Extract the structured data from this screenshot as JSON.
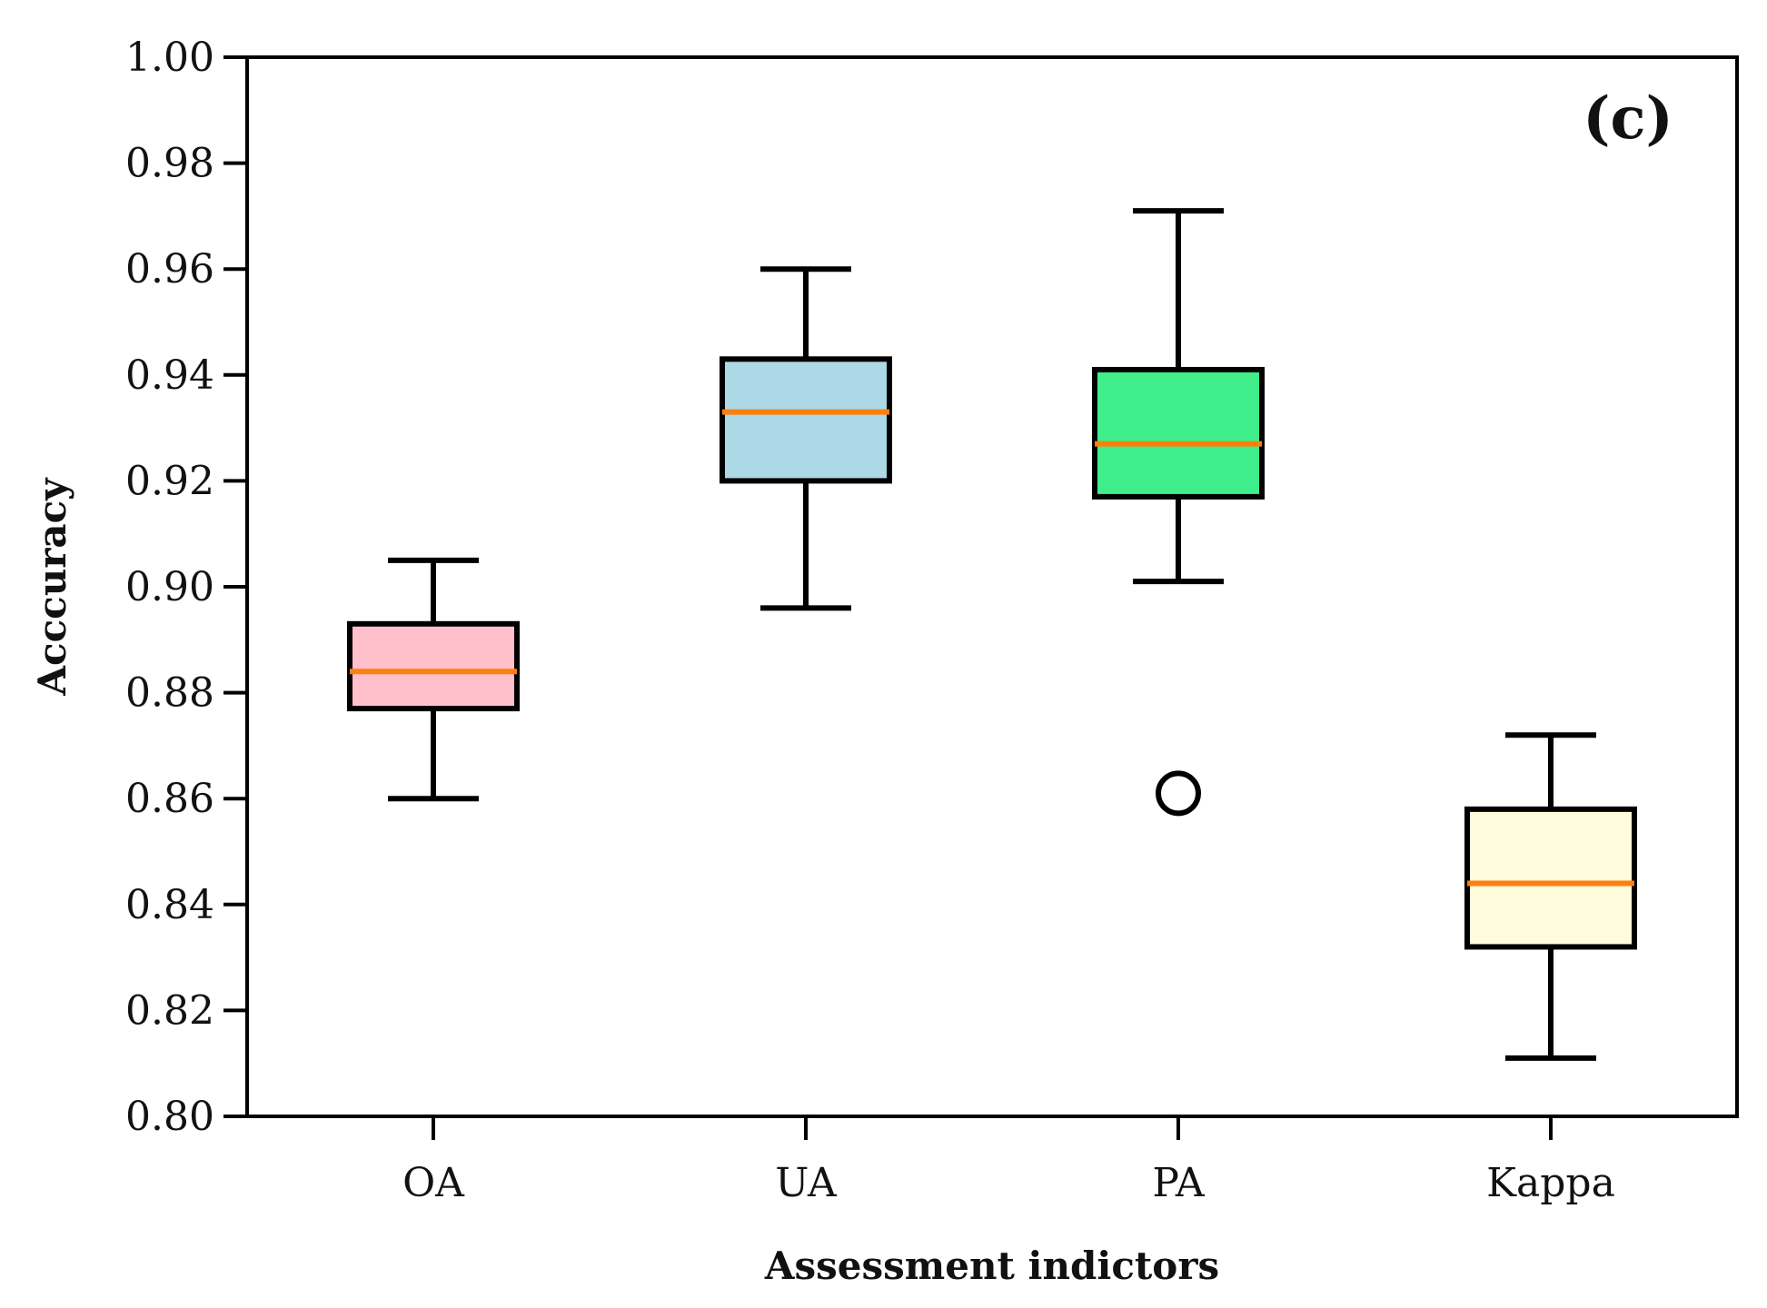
{
  "chart_data": {
    "type": "boxplot",
    "panel_label": "(c)",
    "xlabel": "Assessment indictors",
    "ylabel": "Acccuracy",
    "ylim": [
      0.8,
      1.0
    ],
    "yticks": [
      "0.80",
      "0.82",
      "0.84",
      "0.86",
      "0.88",
      "0.90",
      "0.92",
      "0.94",
      "0.96",
      "0.98",
      "1.00"
    ],
    "median_color": "#ff7f0e",
    "categories": [
      "OA",
      "UA",
      "PA",
      "Kappa"
    ],
    "boxes": [
      {
        "label": "OA",
        "whisker_low": 0.86,
        "q1": 0.877,
        "median": 0.884,
        "q3": 0.893,
        "whisker_high": 0.905,
        "outliers": [],
        "color": "#ffc0cb"
      },
      {
        "label": "UA",
        "whisker_low": 0.896,
        "q1": 0.92,
        "median": 0.933,
        "q3": 0.943,
        "whisker_high": 0.96,
        "outliers": [],
        "color": "#add8e6"
      },
      {
        "label": "PA",
        "whisker_low": 0.901,
        "q1": 0.917,
        "median": 0.927,
        "q3": 0.941,
        "whisker_high": 0.971,
        "outliers": [
          0.861
        ],
        "color": "#3fee8a"
      },
      {
        "label": "Kappa",
        "whisker_low": 0.811,
        "q1": 0.832,
        "median": 0.844,
        "q3": 0.858,
        "whisker_high": 0.872,
        "outliers": [],
        "color": "#fffbdb"
      }
    ]
  }
}
